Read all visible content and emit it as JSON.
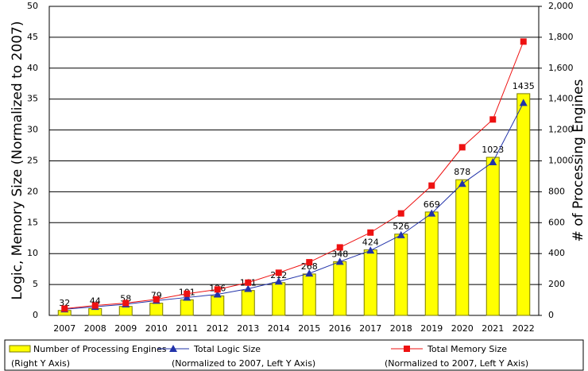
{
  "chart_data": {
    "type": "bar-line",
    "ylabel": "Logic, Memory Size (Normalized to 2007)",
    "y2label": "# of Processing Engines",
    "categories": [
      "2007",
      "2008",
      "2009",
      "2010",
      "2011",
      "2012",
      "2013",
      "2014",
      "2015",
      "2016",
      "2017",
      "2018",
      "2019",
      "2020",
      "2021",
      "2022"
    ],
    "ylim": [
      0,
      50
    ],
    "yticks": [
      0,
      5,
      10,
      15,
      20,
      25,
      30,
      35,
      40,
      45,
      50
    ],
    "y2lim": [
      0,
      2000
    ],
    "y2ticks": [
      0,
      200,
      400,
      600,
      800,
      {
        "value": 1000,
        "label": "1,000"
      },
      {
        "value": 1200,
        "label": "1,200"
      },
      {
        "value": 1400,
        "label": "1,400"
      },
      {
        "value": 1600,
        "label": "1,600"
      },
      {
        "value": 1800,
        "label": "1,800"
      },
      {
        "value": 2000,
        "label": "2,000"
      }
    ],
    "grid": true,
    "series": [
      {
        "name": "Number of Processing Engines",
        "note": "(Right Y Axis)",
        "type": "bar",
        "axis": "y2",
        "color": "#ffff00",
        "values": [
          32,
          44,
          58,
          79,
          101,
          126,
          161,
          212,
          268,
          348,
          424,
          526,
          669,
          878,
          1023,
          1435
        ]
      },
      {
        "name": "Total Logic Size",
        "note": "(Normalized to 2007, Left Y Axis)",
        "type": "line",
        "marker": "triangle",
        "color": "#2233aa",
        "values": [
          1,
          1.4,
          1.8,
          2.4,
          2.9,
          3.4,
          4.3,
          5.5,
          6.8,
          8.7,
          10.5,
          13,
          16.5,
          21.3,
          24.8,
          34.4
        ]
      },
      {
        "name": "Total Memory Size",
        "note": "(Normalized to 2007, Left Y Axis)",
        "type": "line",
        "marker": "square",
        "color": "#ee1111",
        "values": [
          1.1,
          1.6,
          2,
          2.6,
          3.5,
          4.2,
          5.3,
          6.9,
          8.6,
          11,
          13.4,
          16.5,
          21,
          27.2,
          31.7,
          44.3
        ]
      }
    ]
  }
}
